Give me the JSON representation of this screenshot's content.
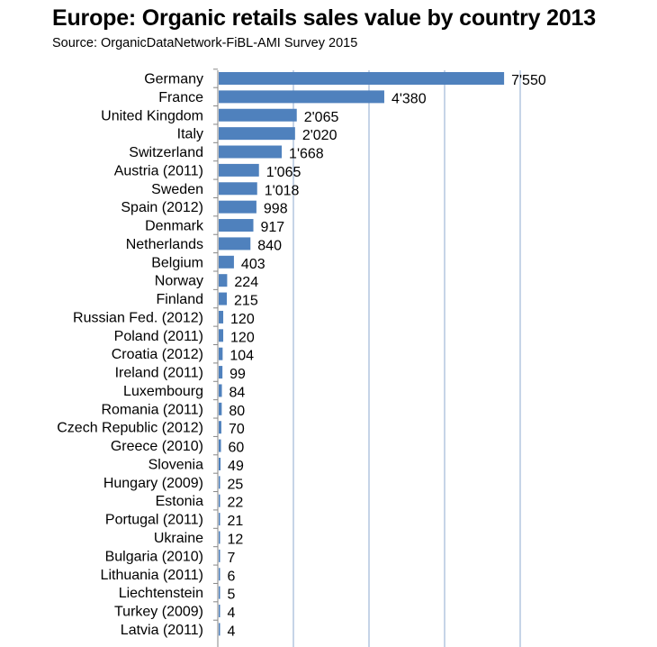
{
  "chart_data": {
    "type": "bar",
    "orientation": "horizontal",
    "title": "Europe: Organic retails sales value by country 2013",
    "subtitle": "Source: OrganicDataNetwork-FiBL-AMI Survey 2015",
    "categories": [
      "Germany",
      "France",
      "United Kingdom",
      "Italy",
      "Switzerland",
      "Austria (2011)",
      "Sweden",
      "Spain (2012)",
      "Denmark",
      "Netherlands",
      "Belgium",
      "Norway",
      "Finland",
      "Russian Fed. (2012)",
      "Poland (2011)",
      "Croatia (2012)",
      "Ireland (2011)",
      "Luxembourg",
      "Romania (2011)",
      "Czech Republic (2012)",
      "Greece (2010)",
      "Slovenia",
      "Hungary (2009)",
      "Estonia",
      "Portugal (2011)",
      "Ukraine",
      "Bulgaria (2010)",
      "Lithuania (2011)",
      "Liechtenstein",
      "Turkey (2009)",
      "Latvia (2011)"
    ],
    "values": [
      7550,
      4380,
      2065,
      2020,
      1668,
      1065,
      1018,
      998,
      917,
      840,
      403,
      224,
      215,
      120,
      120,
      104,
      99,
      84,
      80,
      70,
      60,
      49,
      25,
      22,
      21,
      12,
      7,
      6,
      5,
      4,
      4
    ],
    "data_labels": [
      "7'550",
      "4'380",
      "2'065",
      "2'020",
      "1'668",
      "1'065",
      "1'018",
      "998",
      "917",
      "840",
      "403",
      "224",
      "215",
      "120",
      "120",
      "104",
      "99",
      "84",
      "80",
      "70",
      "60",
      "49",
      "25",
      "22",
      "21",
      "12",
      "7",
      "6",
      "5",
      "4",
      "4"
    ],
    "xlim": [
      0,
      8000
    ],
    "x_gridlines": [
      2000,
      4000,
      6000,
      8000
    ],
    "grid": true,
    "bar_color": "#4f81bd",
    "gridline_color": "#8eaacf"
  }
}
